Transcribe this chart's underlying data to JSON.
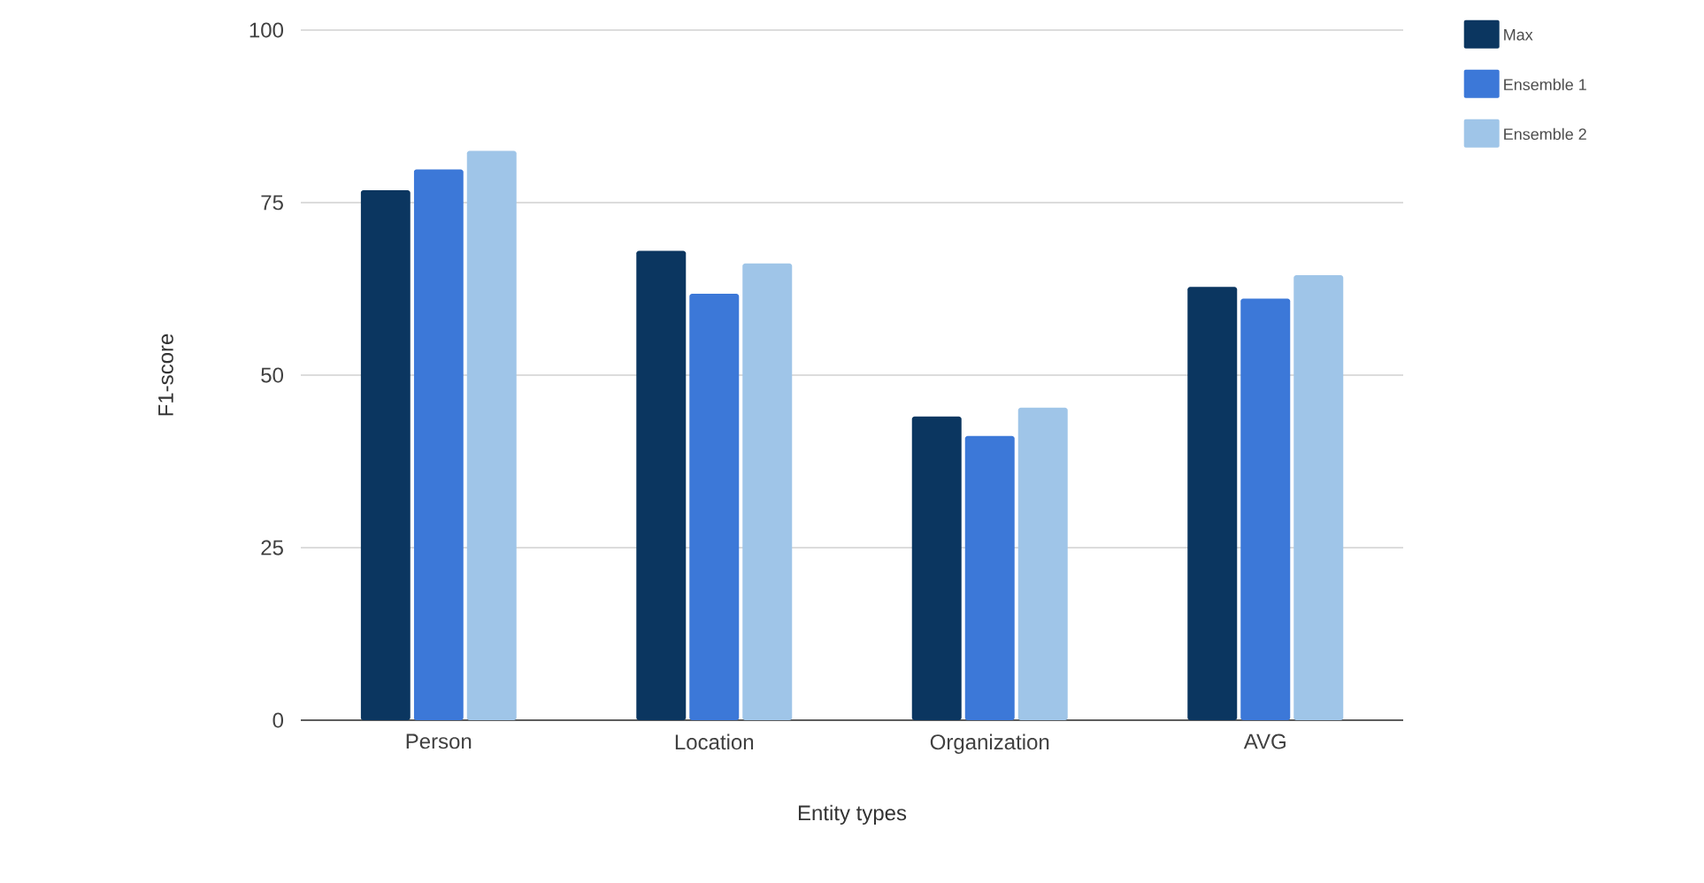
{
  "chart_data": {
    "type": "bar",
    "xlabel": "Entity types",
    "ylabel": "F1-score",
    "categories": [
      "Person",
      "Location",
      "Organization",
      "AVG"
    ],
    "series": [
      {
        "name": "Max",
        "color": "#0b3660",
        "values": [
          76.8,
          68.0,
          44.0,
          62.8
        ]
      },
      {
        "name": "Ensemble 1",
        "color": "#3c78d8",
        "values": [
          79.8,
          61.8,
          41.2,
          61.1
        ]
      },
      {
        "name": "Ensemble 2",
        "color": "#9fc5e8",
        "values": [
          82.5,
          66.2,
          45.3,
          64.5
        ]
      }
    ],
    "ylim": [
      0,
      100
    ],
    "yticks": [
      0,
      25,
      50,
      75,
      100
    ],
    "grid": "y",
    "legend": "top right"
  }
}
